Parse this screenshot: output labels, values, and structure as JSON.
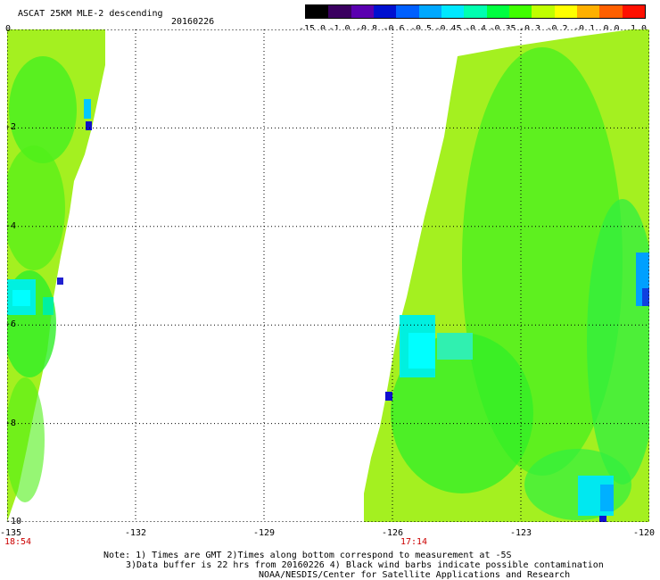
{
  "header": {
    "title": "ASCAT 25KM MLE-2 descending",
    "date": "20160226"
  },
  "colorbar": {
    "labels": [
      "-15.0",
      "-1.0",
      "-0.8",
      "-0.6",
      "-0.5",
      "-0.45",
      "-0.4",
      "-0.35",
      "-0.3",
      "-0.2",
      "-0.1",
      "0.0",
      "1.0"
    ],
    "colors": [
      "#000000",
      "#3a0060",
      "#5a00b0",
      "#0010d0",
      "#0060ff",
      "#00a8ff",
      "#00e8ff",
      "#00ffb0",
      "#00ff40",
      "#40ff00",
      "#c0ff00",
      "#ffff00",
      "#ffb000",
      "#ff6000",
      "#ff1000"
    ]
  },
  "map": {
    "lon_range": [
      -135,
      -120
    ],
    "lat_range": [
      -10,
      0
    ],
    "x_ticks": [
      "-135",
      "-132",
      "-129",
      "-126",
      "-123",
      "-120"
    ],
    "y_ticks": [
      "0",
      "-2",
      "-4",
      "-6",
      "-8",
      "-10"
    ],
    "times": [
      {
        "lon": -135,
        "label": "18:54"
      },
      {
        "lon": -125.5,
        "label": "17:14"
      }
    ]
  },
  "notes": {
    "line1": "Note: 1) Times are GMT 2)Times along bottom correspond to measurement at -5S",
    "line2": "3)Data buffer is 22 hrs from 20160226 4) Black wind barbs indicate possible contamination",
    "line3": "NOAA/NESDIS/Center for Satellite Applications and Research"
  }
}
